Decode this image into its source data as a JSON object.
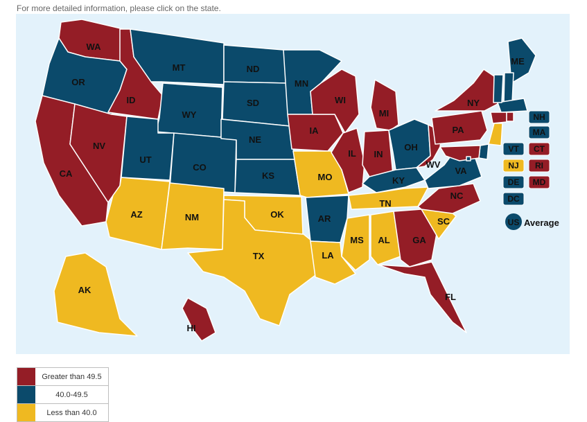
{
  "instruction": "For more detailed information, please click on the state.",
  "colors": {
    "high": "#941d26",
    "mid": "#0b4a6b",
    "low": "#efb921"
  },
  "legend": [
    {
      "key": "high",
      "label": "Greater than 49.5"
    },
    {
      "key": "mid",
      "label": "40.0-49.5"
    },
    {
      "key": "low",
      "label": "Less than 40.0"
    }
  ],
  "us_average": {
    "badge": "US",
    "label": "Average",
    "key": "mid"
  },
  "states": [
    {
      "abbr": "WA",
      "cat": "high"
    },
    {
      "abbr": "OR",
      "cat": "mid"
    },
    {
      "abbr": "CA",
      "cat": "high"
    },
    {
      "abbr": "ID",
      "cat": "high"
    },
    {
      "abbr": "NV",
      "cat": "high"
    },
    {
      "abbr": "MT",
      "cat": "mid"
    },
    {
      "abbr": "WY",
      "cat": "mid"
    },
    {
      "abbr": "UT",
      "cat": "mid"
    },
    {
      "abbr": "CO",
      "cat": "mid"
    },
    {
      "abbr": "AZ",
      "cat": "low"
    },
    {
      "abbr": "NM",
      "cat": "low"
    },
    {
      "abbr": "ND",
      "cat": "mid"
    },
    {
      "abbr": "SD",
      "cat": "mid"
    },
    {
      "abbr": "NE",
      "cat": "mid"
    },
    {
      "abbr": "KS",
      "cat": "mid"
    },
    {
      "abbr": "OK",
      "cat": "low"
    },
    {
      "abbr": "TX",
      "cat": "low"
    },
    {
      "abbr": "MN",
      "cat": "mid"
    },
    {
      "abbr": "IA",
      "cat": "high"
    },
    {
      "abbr": "MO",
      "cat": "low"
    },
    {
      "abbr": "AR",
      "cat": "mid"
    },
    {
      "abbr": "LA",
      "cat": "low"
    },
    {
      "abbr": "WI",
      "cat": "high"
    },
    {
      "abbr": "IL",
      "cat": "high"
    },
    {
      "abbr": "MI",
      "cat": "high"
    },
    {
      "abbr": "IN",
      "cat": "high"
    },
    {
      "abbr": "OH",
      "cat": "mid"
    },
    {
      "abbr": "KY",
      "cat": "mid"
    },
    {
      "abbr": "TN",
      "cat": "low"
    },
    {
      "abbr": "MS",
      "cat": "low"
    },
    {
      "abbr": "AL",
      "cat": "low"
    },
    {
      "abbr": "GA",
      "cat": "high"
    },
    {
      "abbr": "FL",
      "cat": "high"
    },
    {
      "abbr": "SC",
      "cat": "low"
    },
    {
      "abbr": "NC",
      "cat": "high"
    },
    {
      "abbr": "VA",
      "cat": "mid"
    },
    {
      "abbr": "WV",
      "cat": "high"
    },
    {
      "abbr": "PA",
      "cat": "high"
    },
    {
      "abbr": "NY",
      "cat": "high"
    },
    {
      "abbr": "ME",
      "cat": "mid"
    },
    {
      "abbr": "AK",
      "cat": "low"
    },
    {
      "abbr": "HI",
      "cat": "high"
    },
    {
      "abbr": "NH",
      "cat": "mid"
    },
    {
      "abbr": "MA",
      "cat": "mid"
    },
    {
      "abbr": "VT",
      "cat": "mid"
    },
    {
      "abbr": "CT",
      "cat": "high"
    },
    {
      "abbr": "NJ",
      "cat": "low"
    },
    {
      "abbr": "RI",
      "cat": "high"
    },
    {
      "abbr": "DE",
      "cat": "mid"
    },
    {
      "abbr": "MD",
      "cat": "high"
    },
    {
      "abbr": "DC",
      "cat": "mid"
    }
  ]
}
